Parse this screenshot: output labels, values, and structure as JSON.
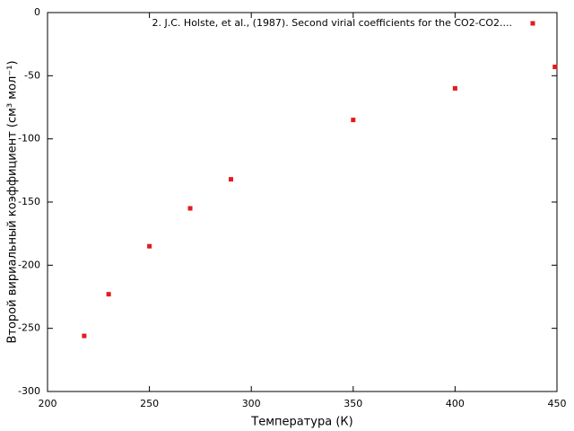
{
  "chart_data": {
    "type": "scatter",
    "xlabel": "Температура (К)",
    "ylabel": "Второй вириальный коэффициент (см³ мол⁻¹)",
    "xlim": [
      200,
      450
    ],
    "xticks": [
      200,
      250,
      300,
      350,
      400,
      450
    ],
    "ylim": [
      -300,
      0
    ],
    "yticks": [
      -300,
      -250,
      -200,
      -150,
      -100,
      -50,
      0
    ],
    "legend": "top-right",
    "series": [
      {
        "name": "2. J.C. Holste, et al., (1987). Second virial coefficients for the CO2-CO2....",
        "color": "#e41a1c",
        "x": [
          218,
          230,
          250,
          270,
          290,
          350,
          400,
          449
        ],
        "values": [
          -256,
          -223,
          -185,
          -155,
          -132,
          -85,
          -60,
          -43
        ]
      }
    ]
  }
}
